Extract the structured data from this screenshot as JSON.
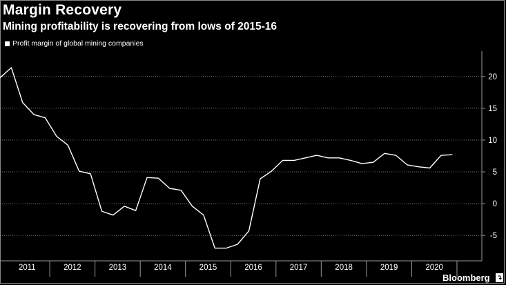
{
  "title": "Margin Recovery",
  "subtitle": "Mining profitability is recovering from lows of 2015-16",
  "brand": "Bloomberg",
  "chart_data": {
    "type": "line",
    "title": "Margin Recovery",
    "subtitle": "Mining profitability is recovering from lows of 2015-16",
    "xlabel": "",
    "ylabel": "",
    "ylim": [
      -9,
      24
    ],
    "y_ticks": [
      -5,
      0,
      5,
      10,
      15,
      20
    ],
    "y_tick_labels": [
      "-5",
      "0",
      "5",
      "10",
      "15",
      "20"
    ],
    "x_range": [
      2010.9,
      2021.55
    ],
    "x_tick_labels": [
      "2011",
      "2012",
      "2013",
      "2014",
      "2015",
      "2016",
      "2017",
      "2018",
      "2019",
      "2020"
    ],
    "y_axis_position": "right",
    "grid": "horizontal dotted",
    "legend_position": "top-left",
    "series": [
      {
        "name": "Profit margin of global mining companies",
        "color": "#ffffff",
        "x": [
          2010.9,
          2011.15,
          2011.4,
          2011.65,
          2011.9,
          2012.15,
          2012.4,
          2012.65,
          2012.9,
          2013.15,
          2013.4,
          2013.65,
          2013.9,
          2014.15,
          2014.4,
          2014.65,
          2014.9,
          2015.15,
          2015.4,
          2015.65,
          2015.9,
          2016.15,
          2016.4,
          2016.65,
          2016.9,
          2017.15,
          2017.4,
          2017.65,
          2017.9,
          2018.15,
          2018.4,
          2018.65,
          2018.9,
          2019.15,
          2019.4,
          2019.65,
          2019.9,
          2020.15,
          2020.4,
          2020.65,
          2020.9
        ],
        "values": [
          19.8,
          21.4,
          15.9,
          14.0,
          13.5,
          10.6,
          9.2,
          5.1,
          4.7,
          -1.2,
          -1.8,
          -0.4,
          -1.1,
          4.1,
          4.0,
          2.4,
          2.1,
          -0.4,
          -1.8,
          -7.0,
          -7.0,
          -6.4,
          -4.3,
          3.9,
          5.1,
          6.8,
          6.8,
          7.2,
          7.6,
          7.2,
          7.2,
          6.8,
          6.3,
          6.5,
          7.9,
          7.6,
          6.1,
          5.8,
          5.6,
          7.6,
          7.7
        ]
      }
    ]
  }
}
